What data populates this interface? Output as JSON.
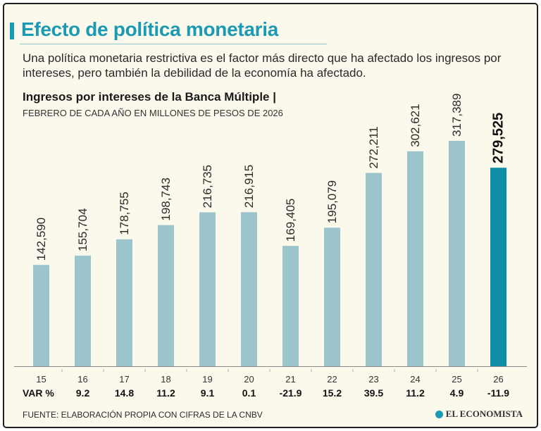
{
  "header": {
    "title": "Efecto de política monetaria",
    "subtitle": "Una política monetaria restrictiva es el factor más directo que ha afectado los ingresos por intereses, pero también la debilidad de la economía ha afectado."
  },
  "footer": {
    "source": "FUENTE: ELABORACIÓN PROPIA CON CIFRAS DE LA CNBV",
    "logo_text": "EL ECONOMISTA"
  },
  "colors": {
    "accent": "#1b9ab4",
    "bar": "#9bc4cc",
    "bar_highlight": "#0f8fa6",
    "background": "#fbf8ec"
  },
  "chart_data": {
    "type": "bar",
    "title": "Ingresos por intereses de la Banca Múltiple |",
    "subtitle": "FEBRERO DE CADA AÑO EN MILLONES DE PESOS DE 2026",
    "categories": [
      "15",
      "16",
      "17",
      "18",
      "19",
      "20",
      "21",
      "22",
      "23",
      "24",
      "25",
      "26"
    ],
    "values": [
      142590,
      155704,
      178755,
      198743,
      216735,
      216915,
      169405,
      195079,
      272211,
      302621,
      317389,
      279525
    ],
    "value_labels": [
      "142,590",
      "155,704",
      "178,755",
      "198,743",
      "216,735",
      "216,915",
      "169,405",
      "195,079",
      "272,211",
      "302,621",
      "317,389",
      "279,525"
    ],
    "highlight_index": 11,
    "var_label": "VAR %",
    "var_values": [
      "9.2",
      "14.8",
      "11.2",
      "9.1",
      "0.1",
      "-21.9",
      "15.2",
      "39.5",
      "11.2",
      "4.9",
      "-11.9"
    ],
    "ylim": [
      0,
      317389
    ],
    "grid": false,
    "legend": "none"
  }
}
